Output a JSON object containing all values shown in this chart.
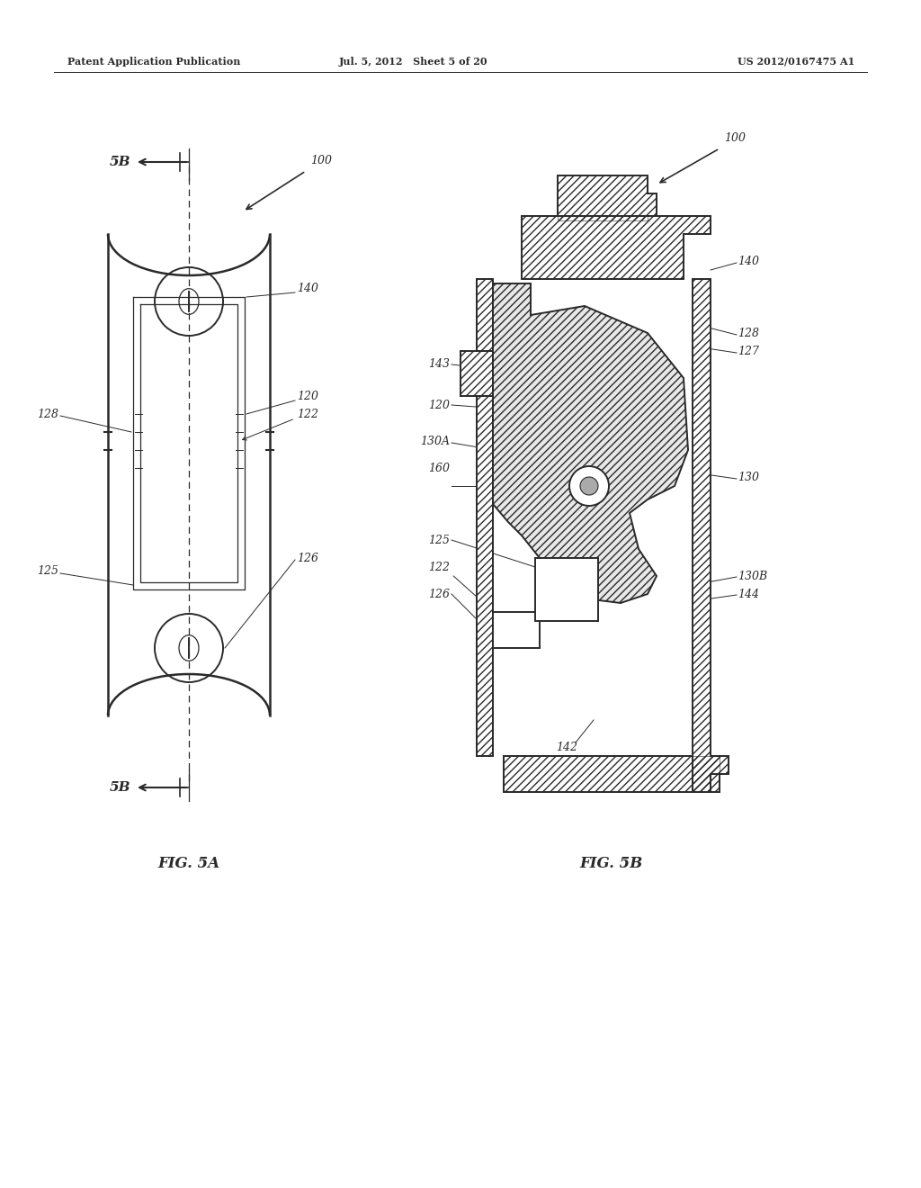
{
  "background_color": "#ffffff",
  "header_left": "Patent Application Publication",
  "header_center": "Jul. 5, 2012   Sheet 5 of 20",
  "header_right": "US 2012/0167475 A1",
  "fig5a_title": "FIG. 5A",
  "fig5b_title": "FIG. 5B",
  "line_color": "#2a2a2a",
  "fs_label": 9,
  "fs_header": 8,
  "fs_fig_title": 12
}
